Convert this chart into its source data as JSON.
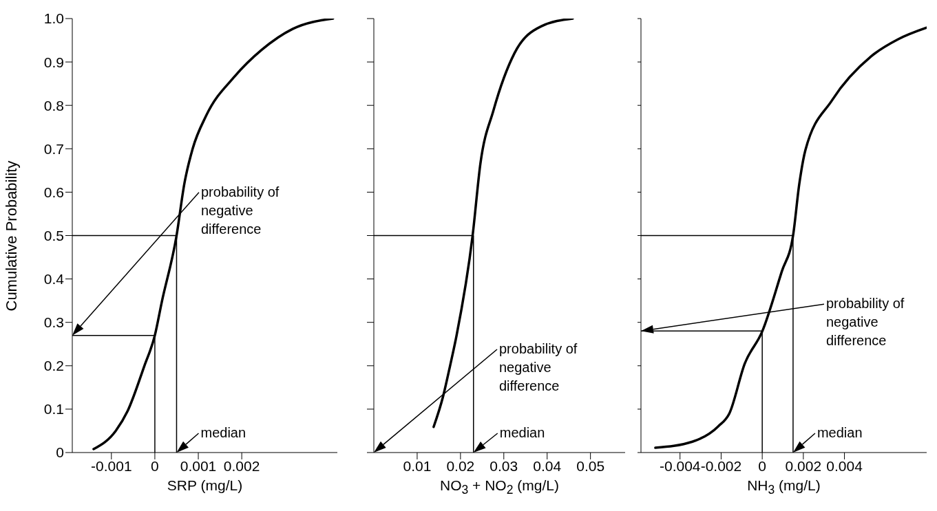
{
  "chart_data": [
    {
      "type": "line",
      "ylabel": "Cumulative Probability",
      "xlabel": "SRP (mg/L)",
      "color": "#000000",
      "x": [
        -0.00141,
        -0.0009,
        -0.00063,
        -0.00024,
        0,
        0.00016,
        0.0005,
        0.00068,
        0.00087,
        0.00118,
        0.00184,
        0.00246,
        0.00317,
        0.0041
      ],
      "values": [
        0.008,
        0.05,
        0.095,
        0.2,
        0.27,
        0.347,
        0.5,
        0.62,
        0.7,
        0.776,
        0.867,
        0.928,
        0.976,
        1.0
      ],
      "xlim": [
        -0.0019,
        0.0042
      ],
      "xticks": [
        -0.001,
        0,
        0.001,
        0.002
      ],
      "ylim": [
        0,
        1
      ],
      "yticks": [
        0,
        0.1,
        0.2,
        0.3,
        0.4,
        0.5,
        0.6,
        0.7,
        0.8,
        0.9,
        {
          "value": 1,
          "label": "1.0"
        }
      ],
      "ref_lines": [
        {
          "axis": "y",
          "value": 0.5
        },
        {
          "axis": "x",
          "value": 0.0005
        },
        {
          "axis": "y",
          "value": 0.27
        },
        {
          "axis": "x",
          "value": 0
        }
      ],
      "annotations": [
        {
          "text": "median",
          "x": 0.0005,
          "y": 0
        },
        "probability of negative difference"
      ]
    },
    {
      "type": "line",
      "xlabel": "NO$_{3}$ + NO$_{2}$ (mg/L)",
      "color": "#000000",
      "tick_labels": "x",
      "x": [
        0.0138,
        0.016,
        0.0176,
        0.0191,
        0.0228,
        0.0246,
        0.0276,
        0.0325,
        0.0386,
        0.0459
      ],
      "values": [
        0.059,
        0.13,
        0.2,
        0.27,
        0.5,
        0.666,
        0.788,
        0.921,
        0.982,
        1.0
      ],
      "xlim": [
        0,
        0.058
      ],
      "xticks": [
        0.01,
        0.02,
        0.03,
        0.04,
        0.05
      ],
      "ylim": [
        0,
        1
      ],
      "yticks": [
        0,
        0.1,
        0.2,
        0.3,
        0.4,
        0.5,
        0.6,
        0.7,
        0.8,
        0.9,
        1
      ],
      "ref_lines": [
        {
          "axis": "y",
          "value": 0.5
        },
        {
          "axis": "x",
          "value": 0.023
        }
      ],
      "annotations": [
        {
          "text": "median",
          "x": 0.023,
          "y": 0
        },
        "probability of negative difference"
      ]
    },
    {
      "type": "line",
      "xlabel": "NH$_{3}$ (mg/L)",
      "color": "#000000",
      "tick_labels": "x",
      "x": [
        -0.0052,
        -0.0034,
        -0.00215,
        -0.0016,
        -0.00085,
        0,
        0.00095,
        0.0015,
        0.0018,
        0.0021,
        0.0034,
        0.0053,
        0.0066,
        0.008
      ],
      "values": [
        0.011,
        0.025,
        0.06,
        0.09,
        0.205,
        0.279,
        0.417,
        0.5,
        0.618,
        0.697,
        0.812,
        0.913,
        0.952,
        0.979
      ],
      "xlim": [
        -0.0059,
        0.008
      ],
      "xticks": [
        -0.004,
        -0.002,
        0,
        0.002,
        0.004
      ],
      "ylim": [
        0,
        1
      ],
      "yticks": [
        0,
        0.1,
        0.2,
        0.3,
        0.4,
        0.5,
        0.6,
        0.7,
        0.8,
        0.9,
        1
      ],
      "ref_lines": [
        {
          "axis": "y",
          "value": 0.5
        },
        {
          "axis": "x",
          "value": 0.0015
        },
        {
          "axis": "y",
          "value": 0.28
        },
        {
          "axis": "x",
          "value": 0
        }
      ],
      "annotations": [
        {
          "text": "median",
          "x": 0.0015,
          "y": 0
        },
        "probability of negative difference"
      ]
    }
  ]
}
